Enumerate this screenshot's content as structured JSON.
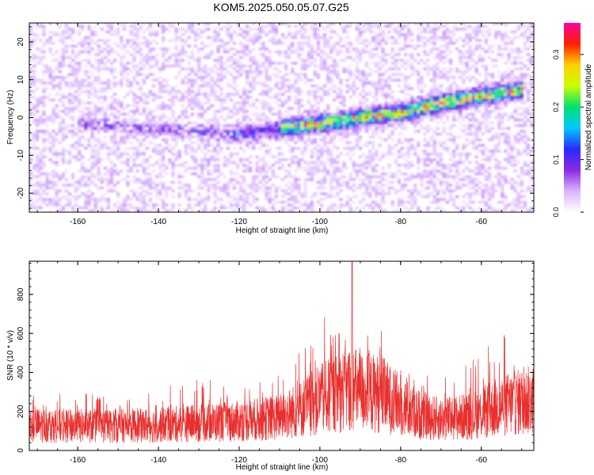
{
  "figure": {
    "title": "KOM5.2025.050.05.07.G25"
  },
  "colors": {
    "spectrogram_background": "#ffffff",
    "snr_line": "#e8302e",
    "colormap": [
      "#ffffff",
      "#d9b3ff",
      "#8a2be2",
      "#2a2aff",
      "#00c8ff",
      "#00e070",
      "#c8ff00",
      "#ffd000",
      "#ff2000",
      "#ff00a0"
    ]
  },
  "chart_data": [
    {
      "type": "heatmap",
      "title": "KOM5.2025.050.05.07.G25",
      "xlabel": "Height of straight line (km)",
      "ylabel": "Frequency (Hz)",
      "xlim": [
        -172,
        -47
      ],
      "ylim": [
        -25,
        25
      ],
      "x_ticks": [
        -160,
        -140,
        -120,
        -100,
        -80,
        -60
      ],
      "y_ticks": [
        -20,
        -10,
        0,
        10,
        20
      ],
      "colorbar": {
        "label": "Normalized spectral amplitude",
        "range": [
          0.0,
          0.36
        ],
        "ticks": [
          0.0,
          0.1,
          0.2,
          0.3
        ]
      },
      "features": [
        {
          "kind": "ridge",
          "points": [
            [
              -122,
              -5
            ],
            [
              -112,
              -3.5
            ],
            [
              -104,
              -2.5
            ],
            [
              -96,
              -1.5
            ],
            [
              -88,
              0
            ],
            [
              -80,
              1
            ],
            [
              -72,
              3
            ],
            [
              -62,
              5
            ],
            [
              -50,
              7
            ]
          ],
          "peak_amplitude": 0.35
        },
        {
          "kind": "faint_ridge",
          "points": [
            [
              -160,
              -2
            ],
            [
              -145,
              -3
            ],
            [
              -130,
              -4
            ],
            [
              -122,
              -5
            ]
          ],
          "peak_amplitude": 0.1
        },
        {
          "kind": "background_scatter",
          "typical_amplitude": 0.03
        }
      ]
    },
    {
      "type": "line",
      "xlabel": "Height of straight line (km)",
      "ylabel": "SNR (10 * v/v)",
      "xlim": [
        -172,
        -47
      ],
      "ylim": [
        0,
        970
      ],
      "x_ticks": [
        -160,
        -140,
        -120,
        -100,
        -80,
        -60
      ],
      "y_ticks": [
        0,
        200,
        400,
        600,
        800
      ],
      "envelope": {
        "x": [
          -172,
          -160,
          -150,
          -140,
          -130,
          -120,
          -110,
          -105,
          -100,
          -95,
          -92,
          -90,
          -85,
          -80,
          -75,
          -70,
          -65,
          -60,
          -55,
          -50,
          -47
        ],
        "baseline": [
          130,
          125,
          125,
          130,
          140,
          150,
          170,
          210,
          260,
          300,
          320,
          300,
          290,
          230,
          180,
          160,
          170,
          190,
          230,
          250,
          260
        ],
        "peaks": [
          280,
          300,
          280,
          320,
          370,
          340,
          420,
          520,
          690,
          740,
          970,
          620,
          640,
          520,
          430,
          400,
          440,
          500,
          630,
          560,
          480
        ]
      }
    }
  ]
}
